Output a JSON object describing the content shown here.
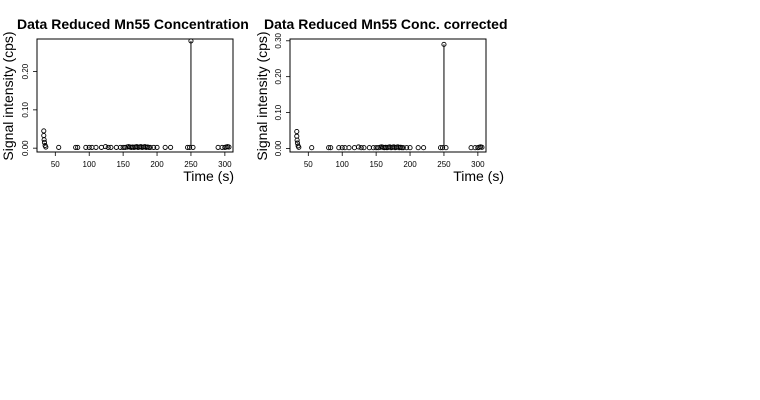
{
  "chart_data": [
    {
      "type": "scatter",
      "title": "Data Reduced Mn55 Concentration",
      "xlabel": "Time (s)",
      "ylabel": "Signal intensity (cps)",
      "xlim": [
        23,
        312
      ],
      "ylim": [
        -0.01,
        0.285
      ],
      "xticks": [
        50,
        100,
        150,
        200,
        250,
        300
      ],
      "yticks": [
        0.0,
        0.1,
        0.2
      ],
      "ytick_labels": [
        "0.00",
        "0.10",
        "0.20"
      ],
      "grid": false,
      "spikes": [
        {
          "x": 250,
          "y": 0.28
        }
      ],
      "x": [
        33,
        33,
        33.5,
        34,
        35,
        36,
        55,
        80,
        83,
        95,
        100,
        104,
        110,
        118,
        124,
        128,
        132,
        140,
        146,
        150,
        153,
        156,
        158,
        160,
        162,
        164,
        166,
        168,
        170,
        172,
        174,
        176,
        178,
        180,
        182,
        184,
        186,
        188,
        190,
        195,
        200,
        212,
        220,
        245,
        248,
        250,
        253,
        290,
        296,
        300,
        302,
        304,
        306
      ],
      "y": [
        0.045,
        0.033,
        0.022,
        0.015,
        0.007,
        0.003,
        0.002,
        0.002,
        0.002,
        0.002,
        0.002,
        0.002,
        0.002,
        0.002,
        0.004,
        0.002,
        0.002,
        0.002,
        0.002,
        0.002,
        0.002,
        0.003,
        0.004,
        0.003,
        0.002,
        0.003,
        0.002,
        0.003,
        0.004,
        0.002,
        0.003,
        0.004,
        0.002,
        0.003,
        0.004,
        0.002,
        0.003,
        0.002,
        0.002,
        0.002,
        0.002,
        0.002,
        0.002,
        0.002,
        0.002,
        0.28,
        0.002,
        0.002,
        0.002,
        0.002,
        0.003,
        0.004,
        0.003
      ]
    },
    {
      "type": "scatter",
      "title": "Data Reduced Mn55 Conc. corrected",
      "xlabel": "Time (s)",
      "ylabel": "Signal intensity (cps)",
      "xlim": [
        23,
        312
      ],
      "ylim": [
        -0.01,
        0.305
      ],
      "xticks": [
        50,
        100,
        150,
        200,
        250,
        300
      ],
      "yticks": [
        0.0,
        0.1,
        0.2,
        0.3
      ],
      "ytick_labels": [
        "0.00",
        "0.10",
        "0.20",
        "0.30"
      ],
      "grid": false,
      "spikes": [
        {
          "x": 250,
          "y": 0.29
        }
      ],
      "x": [
        33,
        33,
        33.5,
        34,
        35,
        36,
        55,
        80,
        83,
        95,
        100,
        104,
        110,
        118,
        124,
        128,
        132,
        140,
        146,
        150,
        153,
        156,
        158,
        160,
        162,
        164,
        166,
        168,
        170,
        172,
        174,
        176,
        178,
        180,
        182,
        184,
        186,
        188,
        190,
        195,
        200,
        212,
        220,
        245,
        248,
        250,
        253,
        290,
        296,
        300,
        302,
        304,
        306
      ],
      "y": [
        0.047,
        0.034,
        0.023,
        0.015,
        0.007,
        0.003,
        0.002,
        0.002,
        0.002,
        0.002,
        0.002,
        0.002,
        0.002,
        0.002,
        0.004,
        0.002,
        0.002,
        0.002,
        0.002,
        0.002,
        0.002,
        0.003,
        0.004,
        0.003,
        0.002,
        0.003,
        0.002,
        0.003,
        0.004,
        0.002,
        0.003,
        0.004,
        0.002,
        0.003,
        0.004,
        0.002,
        0.003,
        0.002,
        0.002,
        0.002,
        0.002,
        0.002,
        0.002,
        0.002,
        0.002,
        0.29,
        0.002,
        0.002,
        0.002,
        0.002,
        0.003,
        0.004,
        0.003
      ]
    }
  ]
}
